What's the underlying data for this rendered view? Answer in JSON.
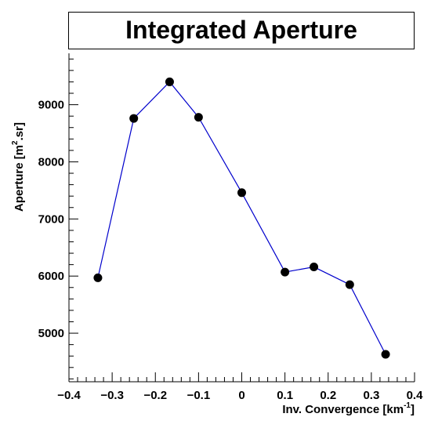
{
  "chart_data": {
    "type": "line",
    "title": "Integrated Aperture",
    "xlabel": "Inv. Convergence [km",
    "xlabel_sup": "-1",
    "xlabel_end": "]",
    "ylabel": "Aperture [m",
    "ylabel_sup": "2",
    "ylabel_end": ".sr]",
    "xlim": [
      -0.4,
      0.4
    ],
    "ylim": [
      4150,
      9900
    ],
    "xticks": [
      -0.4,
      -0.3,
      -0.2,
      -0.1,
      0,
      0.1,
      0.2,
      0.3,
      0.4
    ],
    "xtick_labels": [
      "−0.4",
      "−0.3",
      "−0.2",
      "−0.1",
      "0",
      "0.1",
      "0.2",
      "0.3",
      "0.4"
    ],
    "yticks": [
      5000,
      6000,
      7000,
      8000,
      9000
    ],
    "ytick_labels": [
      "5000",
      "6000",
      "7000",
      "8000",
      "9000"
    ],
    "grid": false,
    "legend": "none",
    "series": [
      {
        "color": "#0000cc",
        "marker_color": "#000000",
        "x": [
          -0.333,
          -0.25,
          -0.167,
          -0.1,
          0,
          0.1,
          0.167,
          0.25,
          0.333
        ],
        "y": [
          5970,
          8760,
          9400,
          8780,
          7460,
          6070,
          6160,
          5850,
          4630
        ]
      }
    ]
  }
}
